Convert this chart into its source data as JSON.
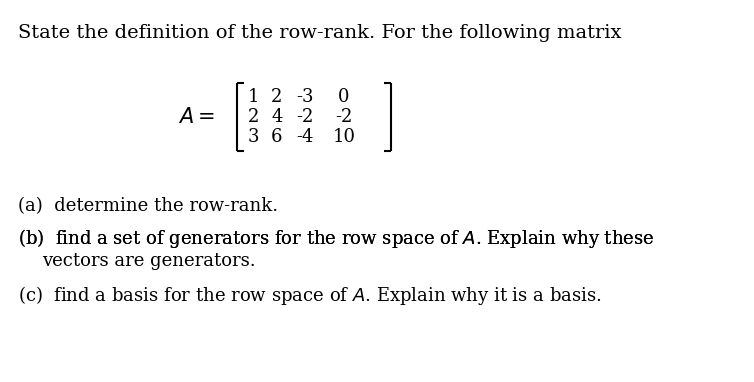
{
  "background_color": "#ffffff",
  "title_text": "State the definition of the row-rank. For the following matrix",
  "matrix_label": "A =",
  "matrix_rows": [
    [
      "1",
      "2",
      "-3",
      "0"
    ],
    [
      "2",
      "4",
      "-2",
      "-2"
    ],
    [
      "3",
      "6",
      "-4",
      "10"
    ]
  ],
  "part_a": "(a)  determine the row-rank.",
  "part_b_line1": "(b)  find a set of generators for the row space of $A$. Explain why these",
  "part_b_line2": "      vectors are generators.",
  "part_c": "(c)  find a basis for the row space of $A$. Explain why it is a basis.",
  "font_size_title": 14,
  "font_size_body": 13,
  "font_size_matrix": 13
}
